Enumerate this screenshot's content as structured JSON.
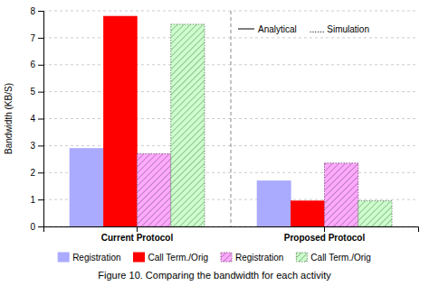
{
  "chart_data": {
    "type": "bar",
    "categories": [
      "Current Protocol",
      "Proposed Protocol"
    ],
    "series": [
      {
        "name": "Registration",
        "color": "#aaaaff",
        "values": [
          2.9,
          1.7
        ]
      },
      {
        "name": "Call Term./Orig",
        "color": "#ff0000",
        "values": [
          7.8,
          0.95
        ]
      },
      {
        "name": "Registration",
        "color": "#ffaaff",
        "line_style": "dotted",
        "values": [
          2.7,
          2.35
        ]
      },
      {
        "name": "Call Term./Orig",
        "color": "#ccffcc",
        "line_style": "dotted",
        "values": [
          7.5,
          0.95
        ]
      }
    ],
    "y_label": "Bandwidth (KB/S)",
    "ylim": [
      0,
      8
    ],
    "yticks": [
      0,
      1,
      2,
      3,
      4,
      5,
      6,
      7,
      8
    ],
    "grid": true,
    "legend": "bottom",
    "annotations": [
      "Analytical",
      "...... Simulation"
    ],
    "caption": "Figure 10. Comparing the bandwidth for each activity"
  }
}
